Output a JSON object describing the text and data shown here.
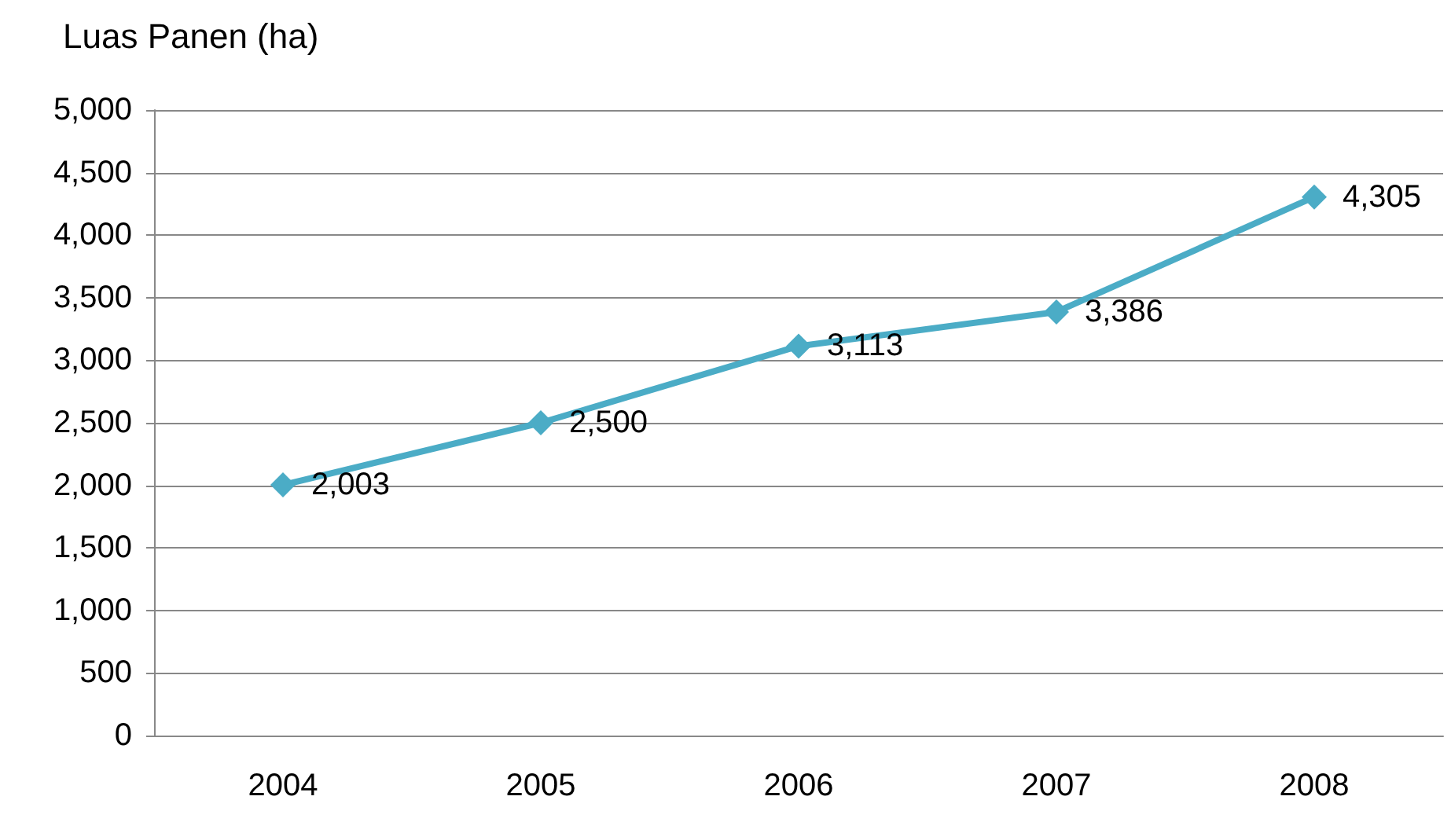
{
  "chart_data": {
    "type": "line",
    "ylabel": "Luas Panen (ha)",
    "categories": [
      "2004",
      "2005",
      "2006",
      "2007",
      "2008"
    ],
    "series": [
      {
        "color": "#4bacc6",
        "values": [
          2003,
          2500,
          3113,
          3386,
          4305
        ]
      }
    ],
    "value_labels": [
      "2,003",
      "2,500",
      "3,113",
      "3,386",
      "4,305"
    ],
    "ylim": [
      0,
      5000
    ],
    "yticks": [
      0,
      500,
      {
        "value": 1000,
        "label": "1,000"
      },
      {
        "value": 1500,
        "label": "1,500"
      },
      {
        "value": 2000,
        "label": "2,000"
      },
      {
        "value": 2500,
        "label": "2,500"
      },
      {
        "value": 3000,
        "label": "3,000"
      },
      {
        "value": 3500,
        "label": "3,500"
      },
      {
        "value": 4000,
        "label": "4,000"
      },
      {
        "value": 4500,
        "label": "4,500"
      },
      {
        "value": 5000,
        "label": "5,000"
      }
    ],
    "grid": "y",
    "marker": "diamond",
    "line_style": "solid"
  }
}
